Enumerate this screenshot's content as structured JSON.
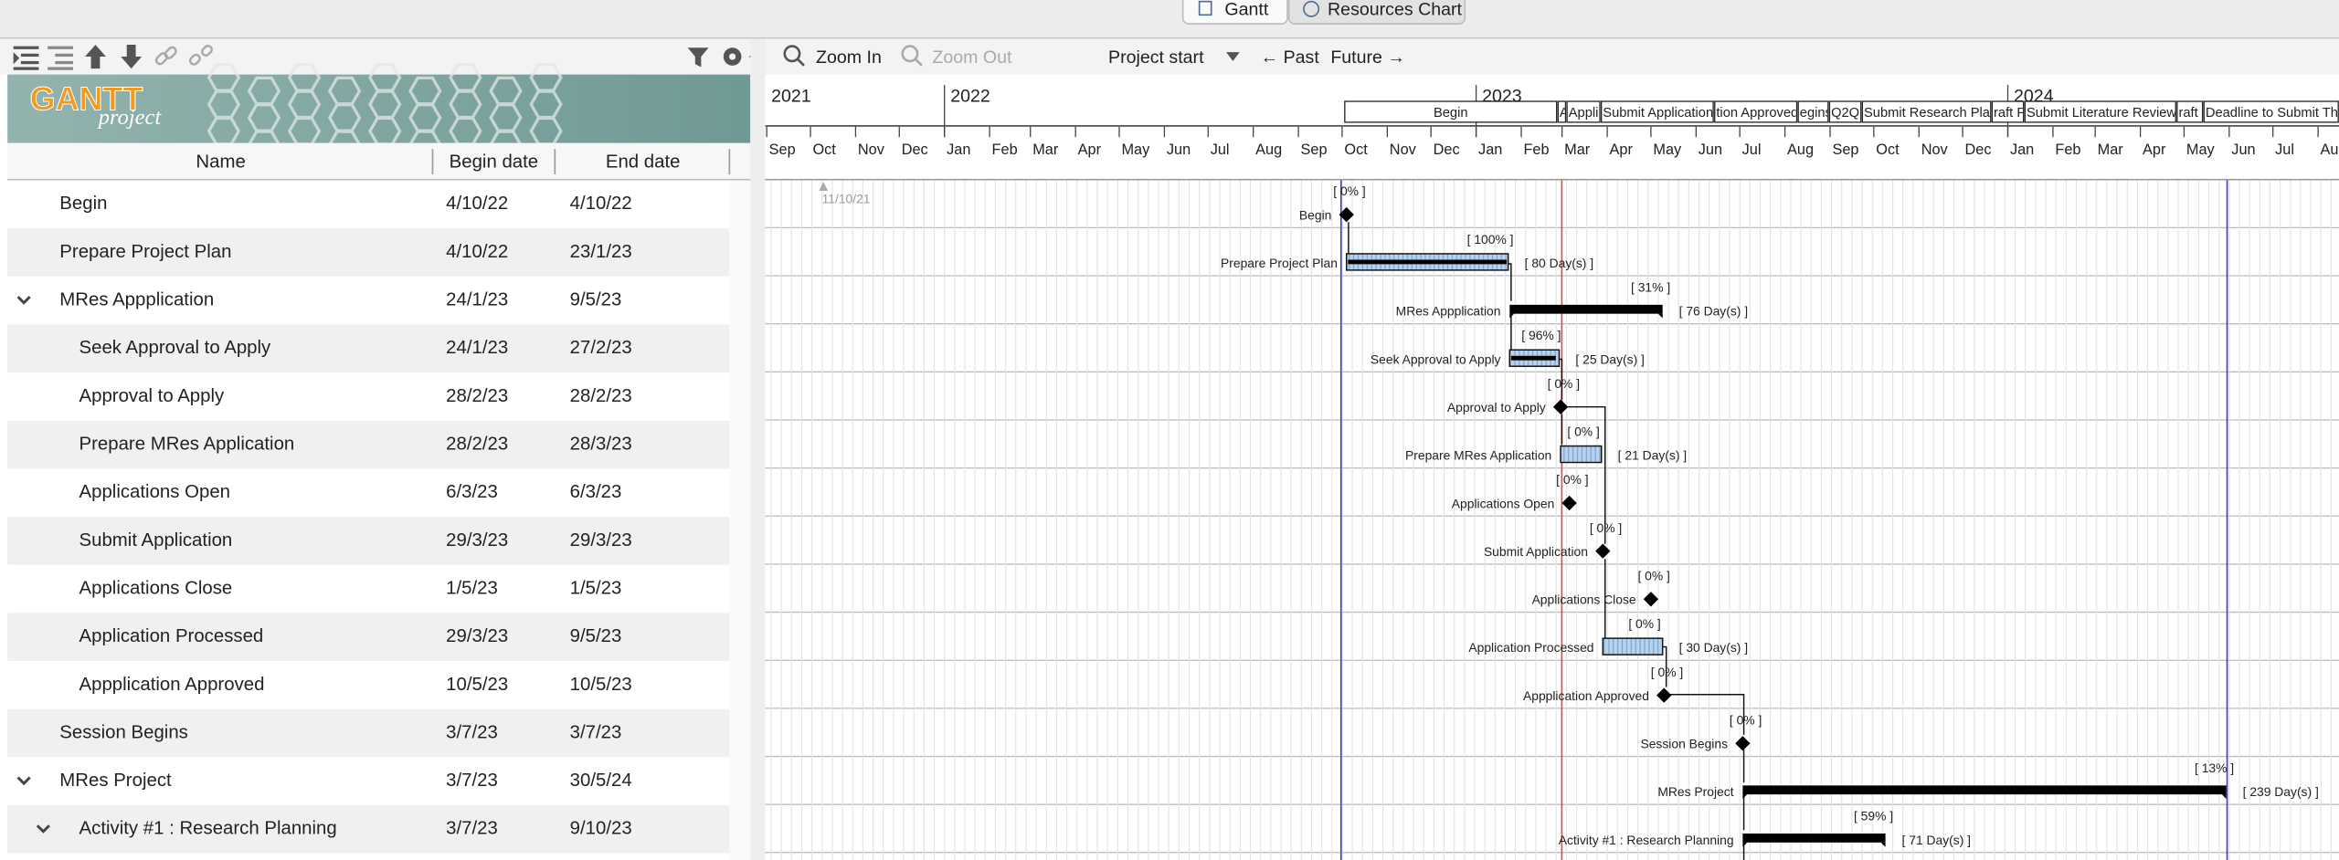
{
  "tabs": [
    "Gantt",
    "Resources Chart"
  ],
  "toolbar": {
    "zoom_in": "Zoom In",
    "zoom_out": "Zoom Out",
    "project_start": "Project start",
    "past": "← Past",
    "future": "Future →"
  },
  "logo": {
    "brand": "GANTT",
    "sub": "project"
  },
  "table": {
    "columns": [
      "Name",
      "Begin date",
      "End date"
    ],
    "rows": [
      {
        "name": "Begin",
        "begin": "4/10/22",
        "end": "4/10/22",
        "level": 0,
        "percent": "[ 0% ]"
      },
      {
        "name": "Prepare Project Plan",
        "begin": "4/10/22",
        "end": "23/1/23",
        "level": 0,
        "percent": "[ 100% ]",
        "duration": "[ 80 Day(s) ]"
      },
      {
        "name": "MRes Appplication",
        "begin": "24/1/23",
        "end": "9/5/23",
        "level": 0,
        "expanded": true,
        "percent": "[ 31% ]",
        "duration": "[ 76 Day(s) ]"
      },
      {
        "name": "Seek Approval to Apply",
        "begin": "24/1/23",
        "end": "27/2/23",
        "level": 1,
        "percent": "[ 96% ]",
        "duration": "[ 25 Day(s) ]"
      },
      {
        "name": "Approval to Apply",
        "begin": "28/2/23",
        "end": "28/2/23",
        "level": 1,
        "percent": "[ 0% ]"
      },
      {
        "name": "Prepare MRes Application",
        "begin": "28/2/23",
        "end": "28/3/23",
        "level": 1,
        "percent": "[ 0% ]",
        "duration": "[ 21 Day(s) ]"
      },
      {
        "name": "Applications Open",
        "begin": "6/3/23",
        "end": "6/3/23",
        "level": 1,
        "percent": "[ 0% ]"
      },
      {
        "name": "Submit Application",
        "begin": "29/3/23",
        "end": "29/3/23",
        "level": 1,
        "percent": "[ 0% ]"
      },
      {
        "name": "Applications Close",
        "begin": "1/5/23",
        "end": "1/5/23",
        "level": 1,
        "percent": "[ 0% ]"
      },
      {
        "name": "Application Processed",
        "begin": "29/3/23",
        "end": "9/5/23",
        "level": 1,
        "percent": "[ 0% ]",
        "duration": "[ 30 Day(s) ]"
      },
      {
        "name": "Appplication Approved",
        "begin": "10/5/23",
        "end": "10/5/23",
        "level": 1,
        "percent": "[ 0% ]"
      },
      {
        "name": "Session Begins",
        "begin": "3/7/23",
        "end": "3/7/23",
        "level": 0,
        "percent": "[ 0% ]"
      },
      {
        "name": "MRes Project",
        "begin": "3/7/23",
        "end": "30/5/24",
        "level": 0,
        "expanded": true,
        "percent": "[ 13% ]",
        "duration": "[ 239 Day(s) ]"
      },
      {
        "name": "Activity #1 : Research Planning",
        "begin": "3/7/23",
        "end": "9/10/23",
        "level": 1,
        "expanded": true,
        "percent": "[ 59% ]",
        "duration": "[ 71 Day(s) ]"
      }
    ]
  },
  "timeline": {
    "years": [
      "2021",
      "2022",
      "2023",
      "2024"
    ],
    "months": [
      "Sep",
      "Oct",
      "Nov",
      "Dec",
      "Jan",
      "Feb",
      "Mar",
      "Apr",
      "May",
      "Jun",
      "Jul",
      "Aug",
      "Sep",
      "Oct",
      "Nov",
      "Dec",
      "Jan",
      "Feb",
      "Mar",
      "Apr",
      "May",
      "Jun",
      "Jul",
      "Aug",
      "Sep",
      "Oct",
      "Nov",
      "Dec",
      "Jan",
      "Feb",
      "Mar",
      "Apr",
      "May",
      "Jun",
      "Jul",
      "Aug"
    ],
    "marker": "11/10/21",
    "milestones": [
      "Begin",
      "A",
      "Appli",
      "Submit Application",
      "tion Approved",
      "egins",
      "Q2Q",
      "Submit Research Plan",
      "raft F",
      "Submit Literature Review",
      "raft",
      "Deadline to Submit The"
    ]
  }
}
